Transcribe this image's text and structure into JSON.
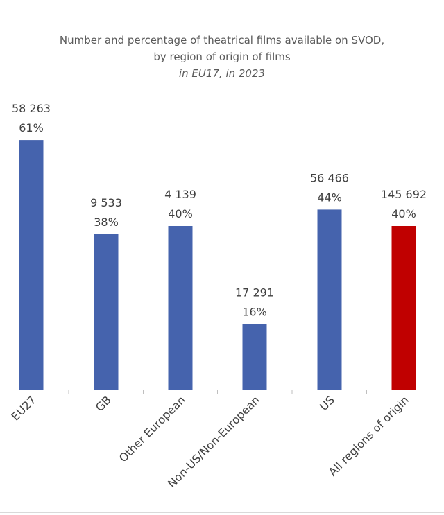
{
  "chart_data": {
    "type": "bar",
    "title_line1": "Number and percentage of theatrical films available on SVOD,",
    "title_line2": "by region of origin of films",
    "subtitle": "in EU17, in 2023",
    "categories": [
      "EU27",
      "GB",
      "Other European",
      "Non-US/Non-European",
      "US",
      "All regions of origin"
    ],
    "series": [
      {
        "values": [
          61,
          38,
          40,
          16,
          44,
          40
        ],
        "counts": [
          "58 263",
          "9 533",
          "4 139",
          "17 291",
          "56 466",
          "145 692"
        ],
        "percent_labels": [
          "61%",
          "38%",
          "40%",
          "16%",
          "44%",
          "40%"
        ]
      }
    ],
    "colors": [
      "#4563ad",
      "#4563ad",
      "#4563ad",
      "#4563ad",
      "#4563ad",
      "#c00000"
    ],
    "ylim": [
      0,
      100
    ],
    "grid": false,
    "legend": "none"
  }
}
